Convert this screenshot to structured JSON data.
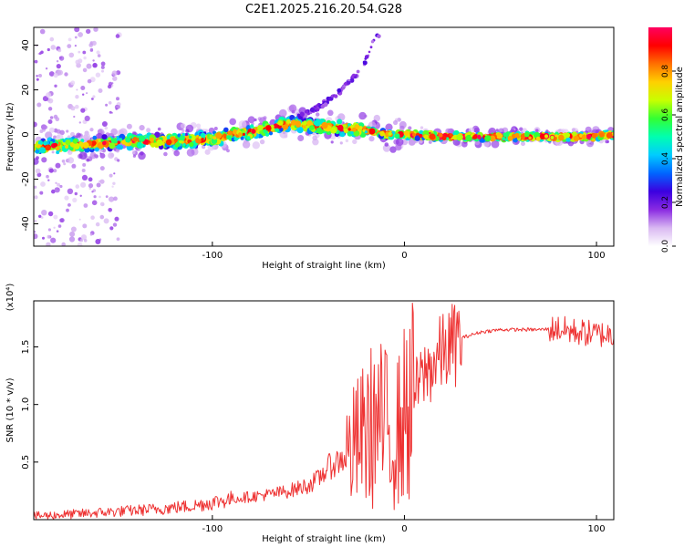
{
  "title": "C2E1.2025.216.20.54.G28",
  "chart_data": [
    {
      "type": "heatmap",
      "xlabel": "Height of straight line (km)",
      "ylabel": "Frequency (Hz)",
      "xlim": [
        -193,
        109
      ],
      "ylim": [
        -50,
        48
      ],
      "xticks": [
        -100,
        0,
        100
      ],
      "yticks": [
        -40,
        -20,
        0,
        20,
        40
      ],
      "colorbar": {
        "label": "Normalized spectral amplitude",
        "range": [
          0,
          1
        ],
        "ticks": [
          0.0,
          0.2,
          0.4,
          0.6,
          0.8
        ],
        "colors": [
          "#ffffff",
          "#d9b8f2",
          "#8a2be2",
          "#3b00e0",
          "#0066ff",
          "#00ccff",
          "#00ffb0",
          "#33ff33",
          "#c8ff00",
          "#ffd000",
          "#ff7000",
          "#ff0000",
          "#ff0060"
        ]
      },
      "ridge": [
        [
          -193,
          -6
        ],
        [
          -180,
          -5
        ],
        [
          -160,
          -4
        ],
        [
          -140,
          -3
        ],
        [
          -120,
          -3
        ],
        [
          -100,
          -2
        ],
        [
          -90,
          0
        ],
        [
          -80,
          1
        ],
        [
          -70,
          3
        ],
        [
          -60,
          5
        ],
        [
          -50,
          4
        ],
        [
          -40,
          3
        ],
        [
          -30,
          3
        ],
        [
          -20,
          2
        ],
        [
          -10,
          0
        ],
        [
          0,
          0
        ],
        [
          20,
          -1
        ],
        [
          40,
          -1
        ],
        [
          60,
          -1
        ],
        [
          80,
          -1
        ],
        [
          100,
          -1
        ],
        [
          109,
          0
        ]
      ],
      "upper_trace": [
        [
          -55,
          8
        ],
        [
          -45,
          12
        ],
        [
          -35,
          18
        ],
        [
          -28,
          24
        ],
        [
          -22,
          30
        ],
        [
          -18,
          37
        ],
        [
          -15,
          45
        ]
      ],
      "grid": false
    },
    {
      "type": "line",
      "xlabel": "Height of straight line (km)",
      "ylabel": "SNR (10 * v/v)",
      "y_multiplier": "(x10⁴)",
      "xlim": [
        -193,
        109
      ],
      "ylim": [
        0,
        1.9
      ],
      "xticks": [
        -100,
        0,
        100
      ],
      "yticks": [
        0.5,
        1.0,
        1.5
      ],
      "series": [
        {
          "color": "#ee3333",
          "x": [
            -193,
            -170,
            -150,
            -130,
            -110,
            -100,
            -90,
            -80,
            -70,
            -60,
            -50,
            -45,
            -40,
            -35,
            -30,
            -25,
            -20,
            -15,
            -10,
            -5,
            0,
            5,
            10,
            15,
            20,
            30,
            40,
            50,
            60,
            70,
            80,
            85,
            90,
            95,
            100,
            109
          ],
          "y": [
            0.03,
            0.05,
            0.07,
            0.09,
            0.12,
            0.15,
            0.18,
            0.2,
            0.22,
            0.25,
            0.3,
            0.35,
            0.45,
            0.5,
            0.55,
            0.65,
            0.75,
            0.85,
            0.8,
            0.7,
            0.9,
            1.1,
            1.25,
            1.35,
            1.45,
            1.58,
            1.63,
            1.65,
            1.65,
            1.65,
            1.66,
            1.64,
            1.63,
            1.62,
            1.61,
            1.61
          ]
        }
      ],
      "grid": false
    }
  ]
}
